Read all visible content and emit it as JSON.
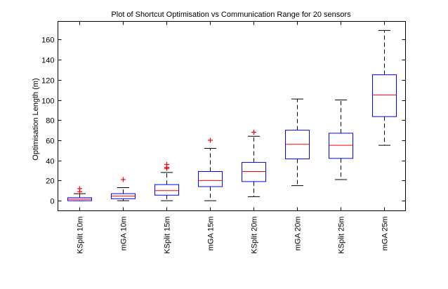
{
  "chart_data": {
    "type": "box",
    "title": "Plot of Shortcut Optimisation vs Communication Range for 20 sensors",
    "xlabel": "",
    "ylabel": "Optimisation Length (m)",
    "ylim": [
      -10,
      178
    ],
    "yticks": [
      0,
      20,
      40,
      60,
      80,
      100,
      120,
      140,
      160
    ],
    "grid": false,
    "colors": {
      "box": "#0000ff",
      "median": "#ff0000",
      "whisker": "#000000",
      "outlier": "#ff0000",
      "axis": "#000000"
    },
    "categories": [
      "KSplit 10m",
      "mGA 10m",
      "KSplit 15m",
      "mGA 15m",
      "KSplit 20m",
      "mGA 20m",
      "KSplit 25m",
      "mGA 25m"
    ],
    "boxes": [
      {
        "lower_whisker": 0,
        "q1": 0,
        "median": 1.5,
        "q3": 3,
        "upper_whisker": 7,
        "outliers": [
          9,
          12
        ]
      },
      {
        "lower_whisker": 0,
        "q1": 2,
        "median": 4.5,
        "q3": 7,
        "upper_whisker": 13,
        "outliers": [
          21
        ]
      },
      {
        "lower_whisker": 0,
        "q1": 5.5,
        "median": 10,
        "q3": 16,
        "upper_whisker": 28,
        "outliers": [
          32,
          33,
          36
        ]
      },
      {
        "lower_whisker": 0,
        "q1": 14,
        "median": 20,
        "q3": 29,
        "upper_whisker": 52,
        "outliers": [
          60
        ]
      },
      {
        "lower_whisker": 4,
        "q1": 19,
        "median": 29,
        "q3": 38,
        "upper_whisker": 64,
        "outliers": [
          68
        ]
      },
      {
        "lower_whisker": 15,
        "q1": 41.5,
        "median": 56,
        "q3": 70,
        "upper_whisker": 101,
        "outliers": []
      },
      {
        "lower_whisker": 21,
        "q1": 42,
        "median": 55,
        "q3": 67,
        "upper_whisker": 100,
        "outliers": []
      },
      {
        "lower_whisker": 55,
        "q1": 83.5,
        "median": 105,
        "q3": 125,
        "upper_whisker": 169,
        "outliers": []
      }
    ]
  }
}
